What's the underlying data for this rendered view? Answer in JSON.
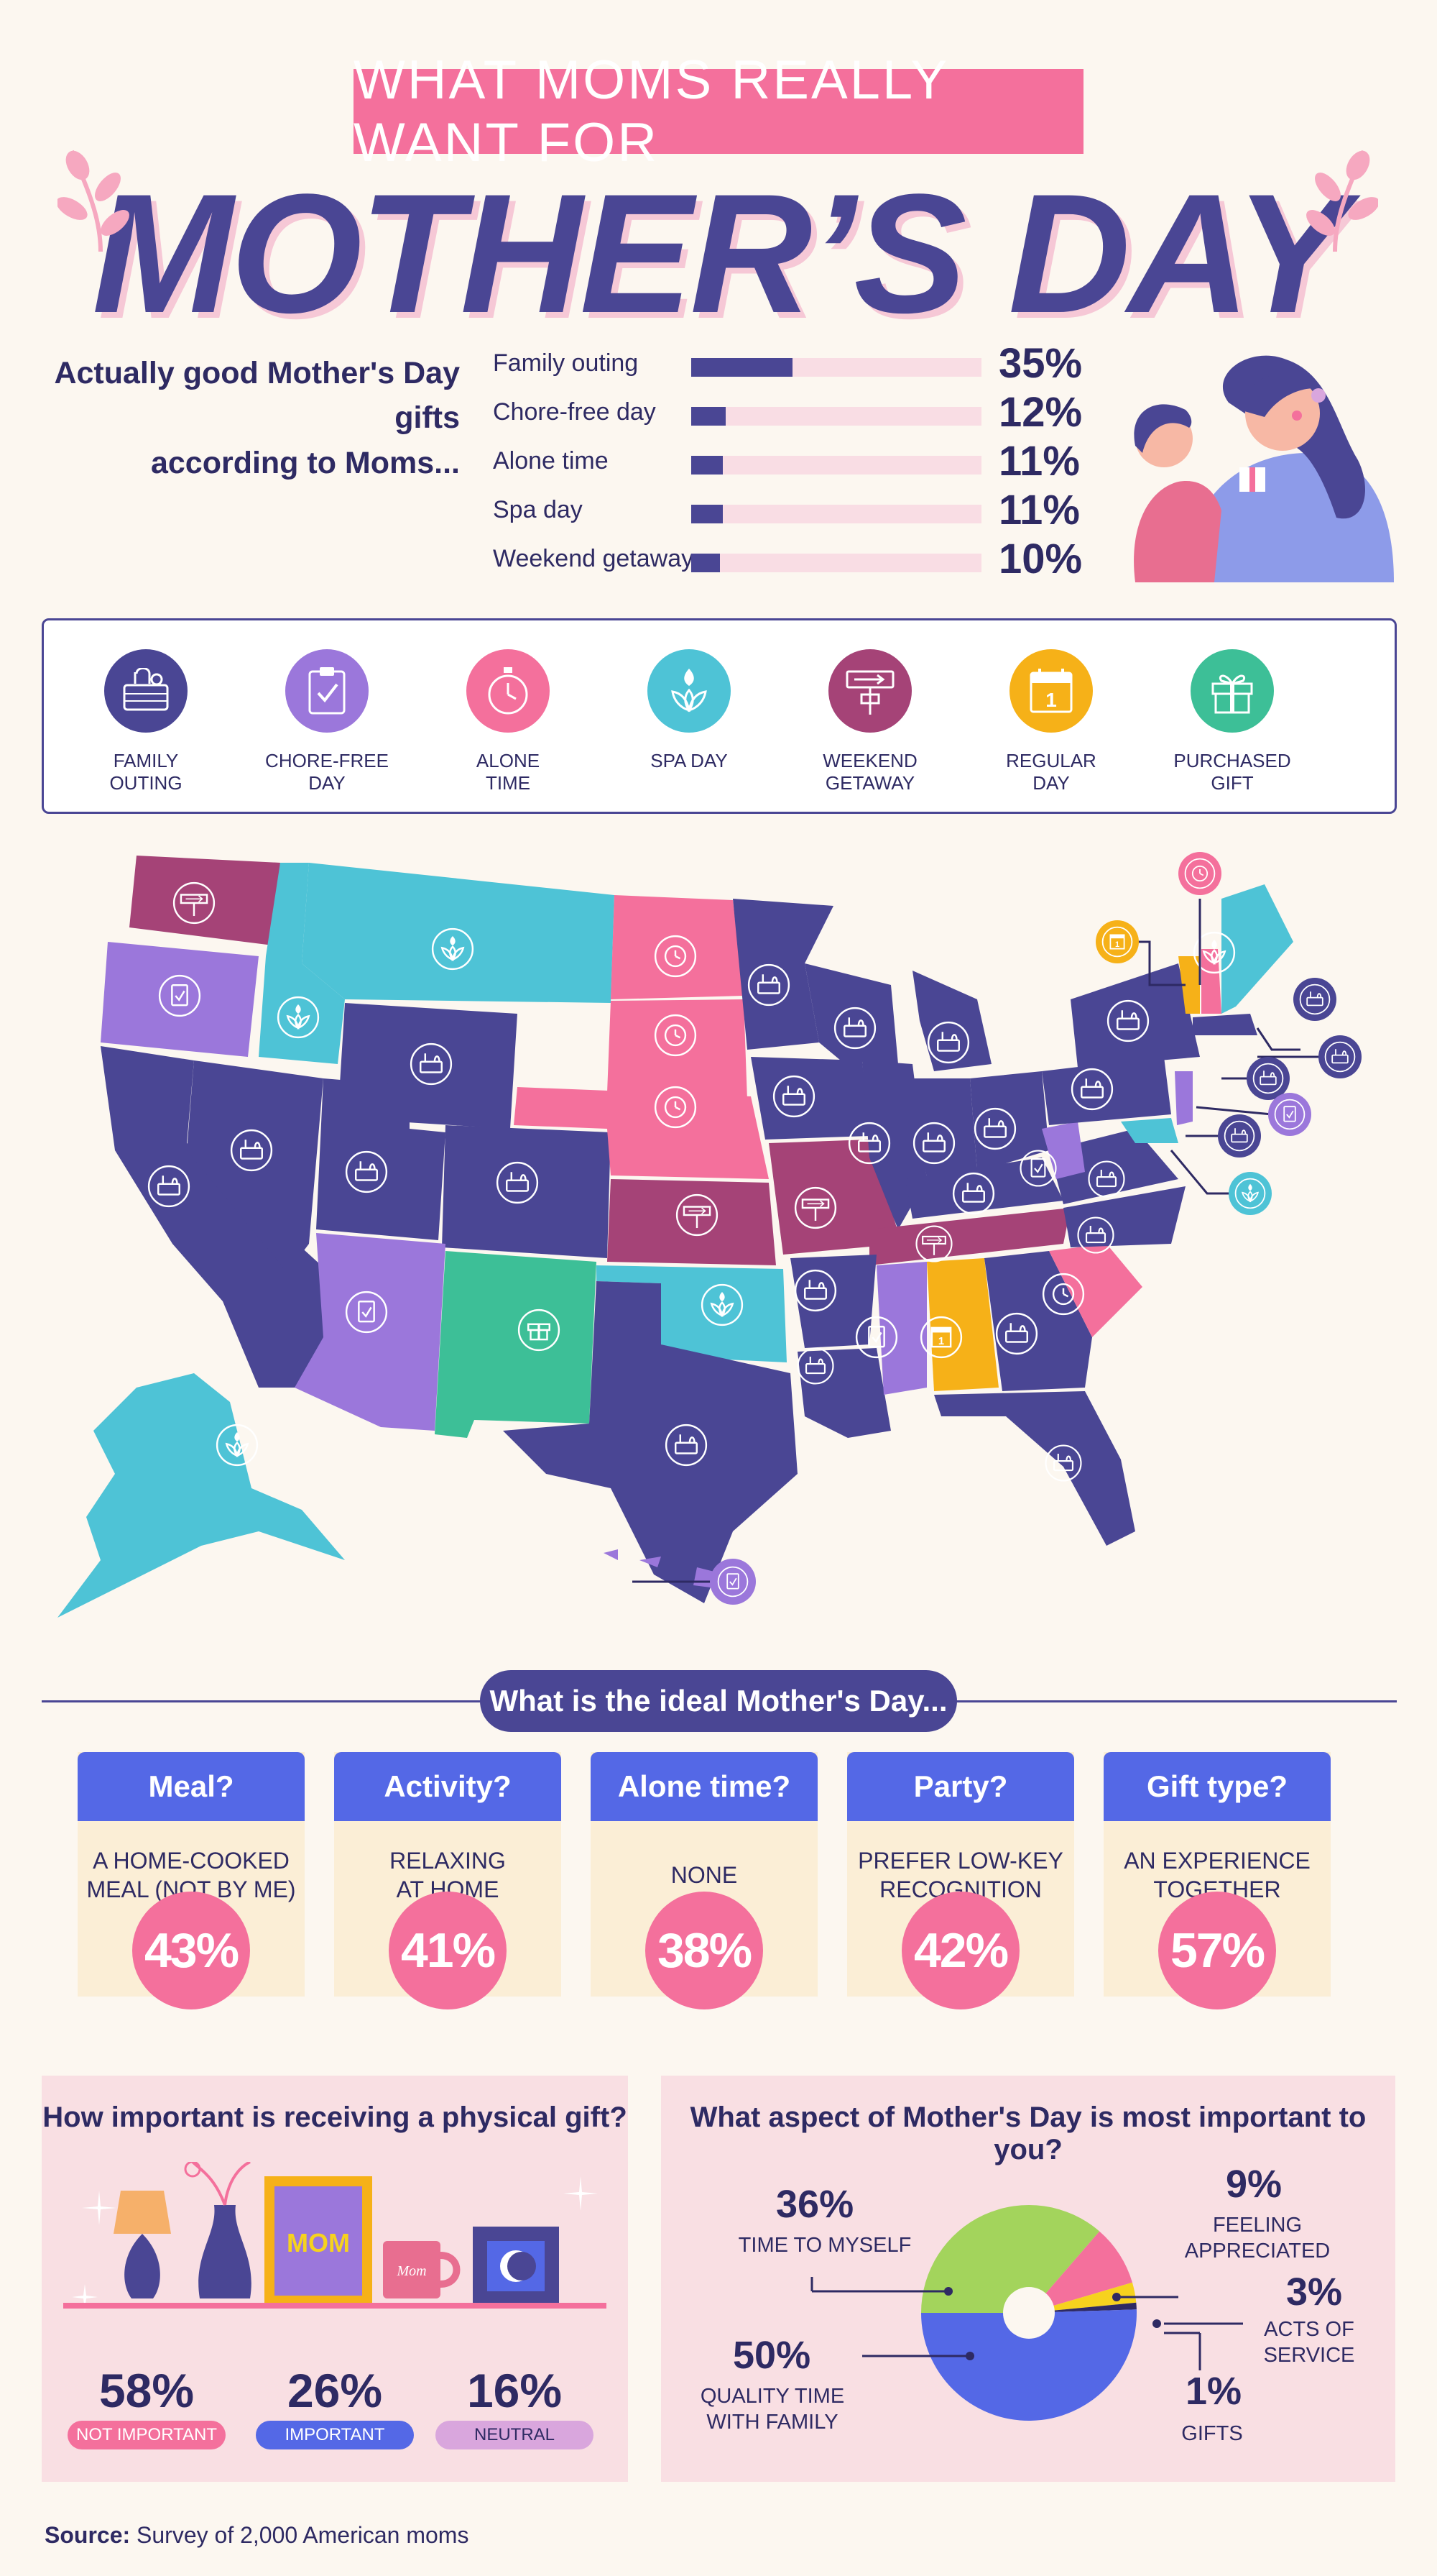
{
  "header": {
    "banner": "WHAT MOMS REALLY WANT FOR",
    "title": "MOTHER’S DAY"
  },
  "gifts": {
    "heading_line1": "Actually good Mother's Day gifts",
    "heading_line2": "according to Moms...",
    "items": [
      {
        "label": "Family outing",
        "pct": "35%",
        "value": 35
      },
      {
        "label": "Chore-free day",
        "pct": "12%",
        "value": 12
      },
      {
        "label": "Alone time",
        "pct": "11%",
        "value": 11
      },
      {
        "label": "Spa day",
        "pct": "11%",
        "value": 11
      },
      {
        "label": "Weekend getaway",
        "pct": "10%",
        "value": 10
      }
    ]
  },
  "legend": [
    {
      "line1": "FAMILY",
      "line2": "OUTING",
      "color": "#4a4694",
      "icon": "picnic-basket-icon"
    },
    {
      "line1": "CHORE-FREE DAY",
      "line2": "",
      "color": "#9b77db",
      "icon": "clipboard-check-icon"
    },
    {
      "line1": "ALONE",
      "line2": "TIME",
      "color": "#f4709c",
      "icon": "stopwatch-icon"
    },
    {
      "line1": "SPA DAY",
      "line2": "",
      "color": "#4ec3d6",
      "icon": "lotus-icon"
    },
    {
      "line1": "WEEKEND",
      "line2": "GETAWAY",
      "color": "#a54377",
      "icon": "signpost-icon"
    },
    {
      "line1": "REGULAR",
      "line2": "DAY",
      "color": "#f6b118",
      "icon": "calendar-icon"
    },
    {
      "line1": "PURCHASED",
      "line2": "GIFT",
      "color": "#3dbf97",
      "icon": "gift-icon"
    }
  ],
  "ideal": {
    "heading": "What is the ideal Mother's Day...",
    "cards": [
      {
        "title": "Meal?",
        "line1": "A HOME-COOKED",
        "line2": "MEAL (NOT BY ME)",
        "pct": "43%"
      },
      {
        "title": "Activity?",
        "line1": "RELAXING",
        "line2": "AT HOME",
        "pct": "41%"
      },
      {
        "title": "Alone time?",
        "line1": "NONE",
        "line2": "",
        "pct": "38%"
      },
      {
        "title": "Party?",
        "line1": "PREFER LOW-KEY",
        "line2": "RECOGNITION",
        "pct": "42%"
      },
      {
        "title": "Gift type?",
        "line1": "AN EXPERIENCE",
        "line2": "TOGETHER",
        "pct": "57%"
      }
    ]
  },
  "physical_gift": {
    "title": "How important is receiving a physical gift?",
    "mug_text": "Mom",
    "frame_text": "MOM",
    "stats": [
      {
        "pct": "58%",
        "label": "NOT IMPORTANT",
        "color": "#f4709c"
      },
      {
        "pct": "26%",
        "label": "IMPORTANT",
        "color": "#5468e6"
      },
      {
        "pct": "16%",
        "label": "NEUTRAL",
        "color": "#d9a6dd"
      }
    ]
  },
  "aspect": {
    "title": "What aspect of Mother's Day is most important to you?",
    "slices": [
      {
        "pct": "36%",
        "line1": "TIME TO MYSELF",
        "line2": "",
        "value": 36,
        "color": "#a3d45c"
      },
      {
        "pct": "9%",
        "line1": "FEELING",
        "line2": "APPRECIATED",
        "value": 9,
        "color": "#f4709c"
      },
      {
        "pct": "3%",
        "line1": "ACTS OF",
        "line2": "SERVICE",
        "value": 3,
        "color": "#f6d21e"
      },
      {
        "pct": "1%",
        "line1": "GIFTS",
        "line2": "",
        "value": 1,
        "color": "#2e2a63"
      },
      {
        "pct": "50%",
        "line1": "QUALITY TIME",
        "line2": "WITH FAMILY",
        "value": 50,
        "color": "#5468e6"
      }
    ]
  },
  "source": {
    "label": "Source:",
    "text": " Survey of 2,000 American moms"
  }
}
